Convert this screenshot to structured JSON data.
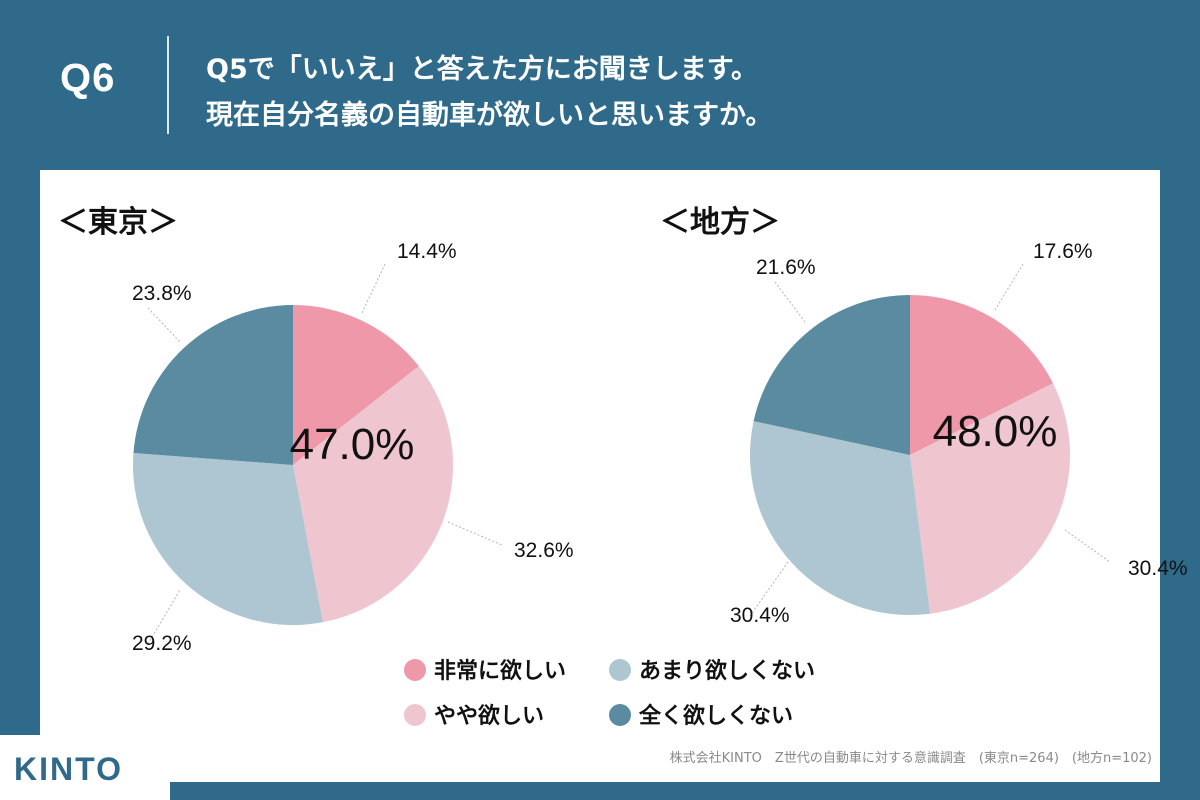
{
  "header": {
    "qnum": "Q6",
    "title_line1": "Q5で「いいえ」と答えた方にお聞きします。",
    "title_line2": "現在自分名義の自動車が欲しいと思いますか。"
  },
  "colors": {
    "background": "#2f6a8a",
    "very_want": "#ee98aa",
    "somewhat_want": "#efc6cf",
    "not_much": "#adc6d2",
    "not_at_all": "#5a8ba1"
  },
  "chart_data": [
    {
      "type": "pie",
      "title": "＜東京＞",
      "center_label": "47.0%",
      "categories": [
        "非常に欲しい",
        "やや欲しい",
        "あまり欲しくない",
        "全く欲しくない"
      ],
      "values": [
        14.4,
        32.6,
        29.2,
        23.8
      ],
      "value_labels": [
        "14.4%",
        "32.6%",
        "29.2%",
        "23.8%"
      ]
    },
    {
      "type": "pie",
      "title": "＜地方＞",
      "center_label": "48.0%",
      "categories": [
        "非常に欲しい",
        "やや欲しい",
        "あまり欲しくない",
        "全く欲しくない"
      ],
      "values": [
        17.6,
        30.4,
        30.4,
        21.6
      ],
      "value_labels": [
        "17.6%",
        "30.4%",
        "30.4%",
        "21.6%"
      ]
    }
  ],
  "legend": {
    "items": [
      "非常に欲しい",
      "やや欲しい",
      "あまり欲しくない",
      "全く欲しくない"
    ]
  },
  "footnote": "株式会社KINTO　Z世代の自動車に対する意識調査　(東京n=264)　(地方n=102)",
  "logo": "KINTO"
}
